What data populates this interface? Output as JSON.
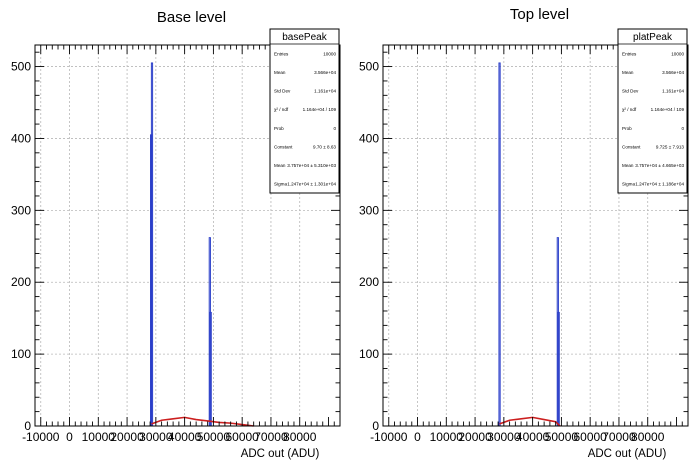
{
  "chart_data": [
    {
      "type": "bar",
      "title": "Base level",
      "xlabel": "ADC out (ADU)",
      "ylabel": "",
      "xlim": [
        -12000,
        94000
      ],
      "ylim": [
        0,
        530
      ],
      "xticks": [
        -10000,
        0,
        10000,
        20000,
        30000,
        40000,
        50000,
        60000,
        70000,
        80000
      ],
      "yticks": [
        0,
        100,
        200,
        300,
        400,
        500
      ],
      "grid": true,
      "series": [
        {
          "values": [
            {
              "x": 28300,
              "y": 405,
              "width": 300
            },
            {
              "x": 28600,
              "y": 505,
              "width": 300
            },
            {
              "x": 48700,
              "y": 262,
              "width": 300
            },
            {
              "x": 49000,
              "y": 158,
              "width": 300
            }
          ]
        }
      ],
      "fit": {
        "x": [
          28500,
          32000,
          36000,
          40000,
          44000,
          48000,
          52000,
          56000,
          60000,
          64000
        ],
        "y": [
          3,
          8,
          10,
          12,
          9,
          7,
          5,
          4,
          2,
          0
        ]
      },
      "stats": {
        "title": "basePeak",
        "rows": [
          {
            "k": "Entries",
            "v": "10000"
          },
          {
            "k": "Mean",
            "v": "3.566e+04"
          },
          {
            "k": "Std Dev",
            "v": "1.161e+04"
          },
          {
            "k": "χ² / ndf",
            "v": "1.164e+04 / 109"
          },
          {
            "k": "Prob",
            "v": "0"
          },
          {
            "k": "Constant",
            "v": "9.70 ± 8.63"
          },
          {
            "k": "Mean",
            "v": "3.757e+04 ± 5.310e+03"
          },
          {
            "k": "Sigma",
            "v": "1.247e+04 ± 1.301e+04"
          }
        ]
      }
    },
    {
      "type": "bar",
      "title": "Top level",
      "xlabel": "ADC out (ADU)",
      "ylabel": "",
      "xlim": [
        -12000,
        94000
      ],
      "ylim": [
        0,
        530
      ],
      "xticks": [
        -10000,
        0,
        10000,
        20000,
        30000,
        40000,
        50000,
        60000,
        70000,
        80000
      ],
      "yticks": [
        0,
        100,
        200,
        300,
        400,
        500
      ],
      "grid": true,
      "series": [
        {
          "values": [
            {
              "x": 28500,
              "y": 505,
              "width": 400
            },
            {
              "x": 48700,
              "y": 262,
              "width": 300
            },
            {
              "x": 49000,
              "y": 158,
              "width": 300
            }
          ]
        }
      ],
      "fit": {
        "x": [
          28500,
          32000,
          36000,
          40000,
          44000,
          48000,
          49500
        ],
        "y": [
          3,
          8,
          10,
          12,
          9,
          6,
          0
        ]
      },
      "stats": {
        "title": "platPeak",
        "rows": [
          {
            "k": "Entries",
            "v": "10000"
          },
          {
            "k": "Mean",
            "v": "3.566e+04"
          },
          {
            "k": "Std Dev",
            "v": "1.161e+04"
          },
          {
            "k": "χ² / ndf",
            "v": "1.164e+04 / 109"
          },
          {
            "k": "Prob",
            "v": "0"
          },
          {
            "k": "Constant",
            "v": "9.725 ± 7.913"
          },
          {
            "k": "Mean",
            "v": "3.757e+04 ± 4.665e+03"
          },
          {
            "k": "Sigma",
            "v": "1.247e+04 ± 1.186e+04"
          }
        ]
      }
    }
  ],
  "colors": {
    "hist": "#2b3fc9",
    "fit": "#cc1f1f",
    "frame": "#000000"
  }
}
